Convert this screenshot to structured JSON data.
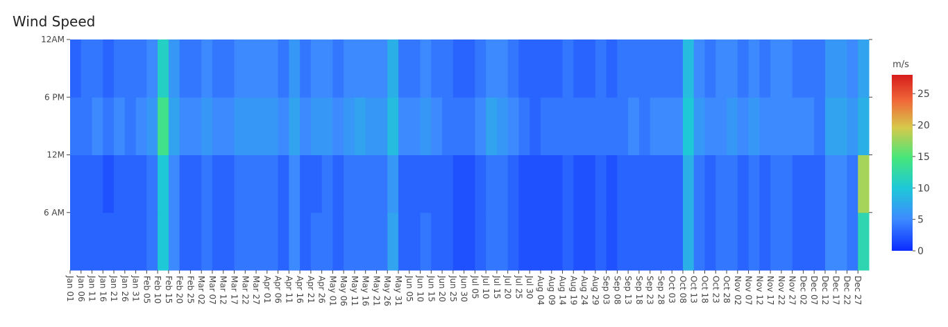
{
  "chart_data": {
    "type": "heatmap",
    "title": "Wind Speed",
    "colorbar_title": "m/s",
    "categories": [
      "Jan 01",
      "Jan 06",
      "Jan 11",
      "Jan 16",
      "Jan 21",
      "Jan 26",
      "Jan 31",
      "Feb 05",
      "Feb 10",
      "Feb 15",
      "Feb 20",
      "Feb 25",
      "Mar 02",
      "Mar 07",
      "Mar 12",
      "Mar 17",
      "Mar 22",
      "Mar 27",
      "Apr 01",
      "Apr 06",
      "Apr 11",
      "Apr 16",
      "Apr 21",
      "Apr 26",
      "May 01",
      "May 06",
      "May 11",
      "May 16",
      "May 21",
      "May 26",
      "May 31",
      "Jun 05",
      "Jun 10",
      "Jun 15",
      "Jun 20",
      "Jun 25",
      "Jun 30",
      "Jul 05",
      "Jul 10",
      "Jul 15",
      "Jul 20",
      "Jul 25",
      "Jul 30",
      "Aug 04",
      "Aug 09",
      "Aug 14",
      "Aug 19",
      "Aug 24",
      "Aug 29",
      "Sep 03",
      "Sep 08",
      "Sep 13",
      "Sep 18",
      "Sep 23",
      "Sep 28",
      "Oct 03",
      "Oct 08",
      "Oct 13",
      "Oct 18",
      "Oct 23",
      "Oct 28",
      "Nov 02",
      "Nov 07",
      "Nov 12",
      "Nov 17",
      "Nov 22",
      "Nov 27",
      "Dec 02",
      "Dec 07",
      "Dec 12",
      "Dec 17",
      "Dec 22",
      "Dec 27"
    ],
    "y": [
      0,
      6,
      12,
      18,
      24
    ],
    "ylim": [
      0,
      24
    ],
    "yticks": [
      {
        "value": 6,
        "label": "6 AM"
      },
      {
        "value": 12,
        "label": "12M"
      },
      {
        "value": 18,
        "label": "6 PM"
      },
      {
        "value": 24,
        "label": "12AM"
      }
    ],
    "z": [
      [
        3,
        3,
        3,
        3,
        3,
        3,
        3,
        4,
        10,
        5,
        3,
        3,
        4,
        3,
        3,
        4,
        4,
        4,
        4,
        3,
        5,
        3,
        4,
        4,
        3,
        4,
        4,
        4,
        4,
        7,
        3,
        3,
        4,
        3,
        3,
        2,
        2,
        3,
        4,
        4,
        3,
        2,
        2,
        2,
        2,
        3,
        2,
        2,
        3,
        2,
        3,
        3,
        3,
        3,
        3,
        3,
        8,
        4,
        3,
        4,
        4,
        3,
        4,
        3,
        4,
        4,
        3,
        3,
        3,
        5,
        5,
        4,
        12
      ],
      [
        3,
        3,
        3,
        2,
        3,
        3,
        3,
        4,
        10,
        5,
        3,
        3,
        4,
        3,
        3,
        4,
        4,
        4,
        4,
        3,
        5,
        3,
        3,
        4,
        3,
        4,
        4,
        4,
        4,
        6,
        3,
        3,
        3,
        3,
        3,
        2,
        2,
        3,
        4,
        4,
        3,
        2,
        2,
        2,
        2,
        3,
        2,
        2,
        3,
        2,
        3,
        3,
        3,
        3,
        3,
        3,
        8,
        4,
        3,
        4,
        4,
        3,
        4,
        3,
        4,
        4,
        3,
        3,
        3,
        5,
        5,
        4,
        18
      ],
      [
        4,
        4,
        5,
        4,
        5,
        4,
        5,
        6,
        14,
        7,
        5,
        5,
        6,
        5,
        5,
        6,
        6,
        6,
        6,
        5,
        7,
        5,
        6,
        6,
        5,
        6,
        7,
        6,
        6,
        9,
        5,
        5,
        6,
        5,
        4,
        4,
        4,
        5,
        7,
        6,
        5,
        4,
        3,
        4,
        4,
        4,
        4,
        4,
        4,
        4,
        4,
        5,
        4,
        5,
        5,
        5,
        10,
        6,
        5,
        5,
        6,
        5,
        6,
        5,
        5,
        5,
        5,
        5,
        4,
        7,
        7,
        6,
        8
      ],
      [
        3,
        4,
        4,
        3,
        4,
        4,
        4,
        5,
        11,
        6,
        4,
        4,
        5,
        4,
        4,
        5,
        5,
        5,
        5,
        4,
        6,
        4,
        5,
        5,
        4,
        5,
        5,
        5,
        5,
        8,
        4,
        4,
        5,
        4,
        4,
        3,
        3,
        4,
        5,
        5,
        4,
        3,
        3,
        3,
        3,
        4,
        3,
        3,
        4,
        3,
        4,
        4,
        4,
        4,
        4,
        4,
        9,
        5,
        4,
        5,
        5,
        4,
        5,
        4,
        5,
        5,
        4,
        4,
        4,
        6,
        6,
        5,
        7
      ]
    ],
    "zlim": [
      0,
      28
    ],
    "zticks": [
      0,
      5,
      10,
      15,
      20,
      25
    ],
    "colorscale": [
      [
        0,
        "#0b2bff"
      ],
      [
        0.18,
        "#3d8bff"
      ],
      [
        0.36,
        "#1ec9d6"
      ],
      [
        0.53,
        "#47e67a"
      ],
      [
        0.7,
        "#d6c94a"
      ],
      [
        0.85,
        "#f06a3a"
      ],
      [
        1,
        "#d61c1c"
      ]
    ]
  }
}
